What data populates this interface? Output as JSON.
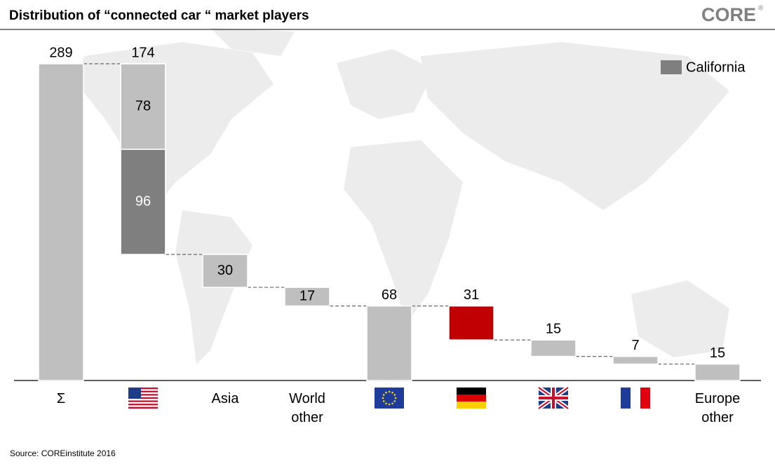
{
  "title": "Distribution of “connected car “ market players",
  "logo": "CORE",
  "logo_mark": "®",
  "source": "Source: COREinstitute  2016",
  "chart_data": {
    "type": "waterfall",
    "categories": [
      "Σ",
      null,
      "Asia",
      "World other",
      null,
      null,
      null,
      null,
      "Europe other"
    ],
    "values": [
      289,
      174,
      30,
      17,
      68,
      31,
      15,
      7,
      15
    ],
    "measure": [
      "total",
      "decrease",
      "decrease",
      "decrease",
      "total",
      "decrease",
      "decrease",
      "decrease",
      "decrease"
    ],
    "colors": [
      "#bfbfbf",
      "#bfbfbf",
      "#bfbfbf",
      "#bfbfbf",
      "#bfbfbf",
      "#c00000",
      "#bfbfbf",
      "#bfbfbf",
      "#bfbfbf"
    ],
    "series": [
      {
        "name": "California",
        "color": "#7f7f7f",
        "values": [
          null,
          96,
          null,
          null,
          null,
          null,
          null,
          null,
          null
        ]
      },
      {
        "color": "#bfbfbf",
        "values": [
          null,
          78,
          null,
          null,
          null,
          null,
          null,
          null,
          null
        ]
      }
    ],
    "legend": "top-right"
  }
}
